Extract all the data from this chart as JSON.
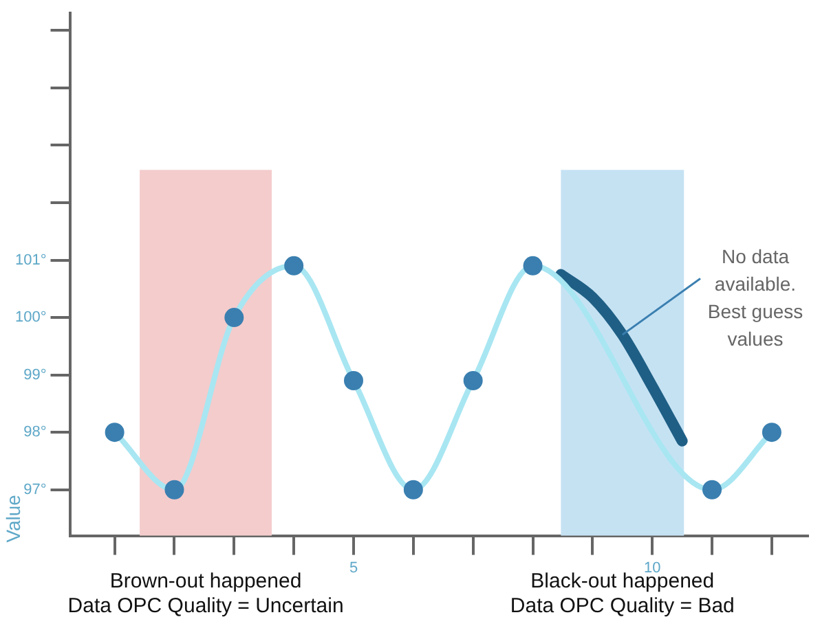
{
  "chart_data": {
    "type": "line",
    "ylabel": "Value",
    "xlim": [
      0.25,
      12.6
    ],
    "xticks": [
      {
        "value": 1,
        "label": null
      },
      {
        "value": 2,
        "label": null
      },
      {
        "value": 3,
        "label": null
      },
      {
        "value": 4,
        "label": null
      },
      5,
      {
        "value": 6,
        "label": null
      },
      {
        "value": 7,
        "label": null
      },
      {
        "value": 8,
        "label": null
      },
      {
        "value": 9,
        "label": null
      },
      10,
      {
        "value": 11,
        "label": null
      },
      {
        "value": 12,
        "label": null
      }
    ],
    "ylim": [
      96.2,
      105.3
    ],
    "yticks": [
      {
        "value": 97,
        "label": "97°"
      },
      {
        "value": 98,
        "label": "98°"
      },
      {
        "value": 99,
        "label": "99°"
      },
      {
        "value": 100,
        "label": "100°"
      },
      {
        "value": 101,
        "label": "101°"
      },
      {
        "value": 102,
        "label": null
      },
      {
        "value": 103,
        "label": null
      },
      {
        "value": 104,
        "label": null
      },
      {
        "value": 105,
        "label": null
      }
    ],
    "series": [
      {
        "color": "#a8e6f2",
        "marker": "circle",
        "x": [
          1,
          2,
          3,
          4,
          5,
          6,
          7,
          8,
          11,
          12
        ],
        "values": [
          98,
          97,
          100,
          100.9,
          98.9,
          97,
          98.9,
          100.9,
          97,
          98
        ]
      },
      {
        "color": "#1f5f85",
        "marker": "none",
        "x": [
          8.47,
          9,
          9.5,
          10,
          10.5
        ],
        "values": [
          100.75,
          100.35,
          99.7,
          98.8,
          97.85
        ]
      }
    ],
    "bands": [
      {
        "axis": "x",
        "from": 1.42,
        "to": 3.63,
        "label": "Brown-out happened\nData OPC Quality = Uncertain",
        "color": "#f4cccc"
      },
      {
        "axis": "x",
        "from": 8.47,
        "to": 10.53,
        "label": "Black-out happened\nData OPC Quality = Bad",
        "color": "#c5e2f3"
      }
    ],
    "annotations": [
      {
        "text": "No data\navailable.\nBest guess\nvalues",
        "x": 9.5,
        "y": 99.7
      }
    ],
    "grid": false,
    "legend": false
  }
}
